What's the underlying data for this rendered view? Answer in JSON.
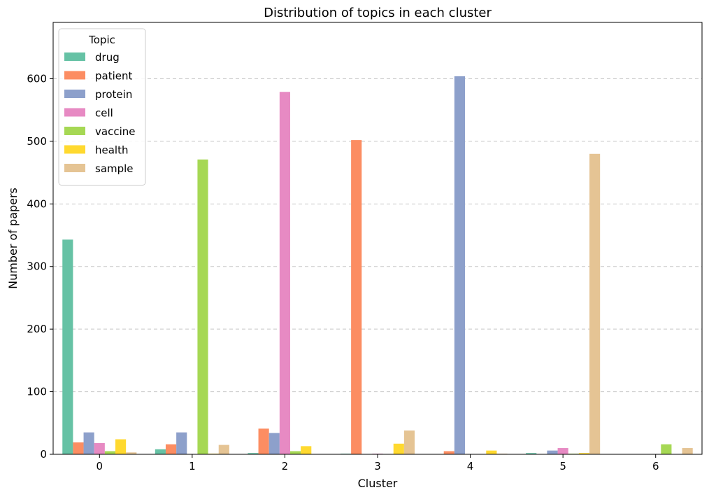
{
  "chart_data": {
    "type": "bar",
    "title": "Distribution of topics in each cluster",
    "xlabel": "Cluster",
    "ylabel": "Number of papers",
    "categories": [
      "0",
      "1",
      "2",
      "3",
      "4",
      "5",
      "6"
    ],
    "ylim": [
      0,
      690
    ],
    "yticks": [
      0,
      100,
      200,
      300,
      400,
      500,
      600
    ],
    "grid": "y-dashed",
    "legend": {
      "title": "Topic",
      "placement": "top-left"
    },
    "series": [
      {
        "name": "drug",
        "color": "#66c2a5",
        "values": [
          343,
          8,
          2,
          1,
          0,
          2,
          0
        ]
      },
      {
        "name": "patient",
        "color": "#fc8d62",
        "values": [
          19,
          16,
          41,
          502,
          5,
          0,
          0
        ]
      },
      {
        "name": "protein",
        "color": "#8da0cb",
        "values": [
          35,
          35,
          34,
          0,
          604,
          6,
          0
        ]
      },
      {
        "name": "cell",
        "color": "#e78ac3",
        "values": [
          18,
          0,
          579,
          1,
          0,
          10,
          0
        ]
      },
      {
        "name": "vaccine",
        "color": "#a6d854",
        "values": [
          5,
          471,
          5,
          0,
          0,
          1,
          16
        ]
      },
      {
        "name": "health",
        "color": "#ffd92f",
        "values": [
          24,
          1,
          13,
          17,
          6,
          2,
          0
        ]
      },
      {
        "name": "sample",
        "color": "#e5c494",
        "values": [
          3,
          15,
          0,
          38,
          1,
          480,
          10
        ]
      }
    ]
  }
}
